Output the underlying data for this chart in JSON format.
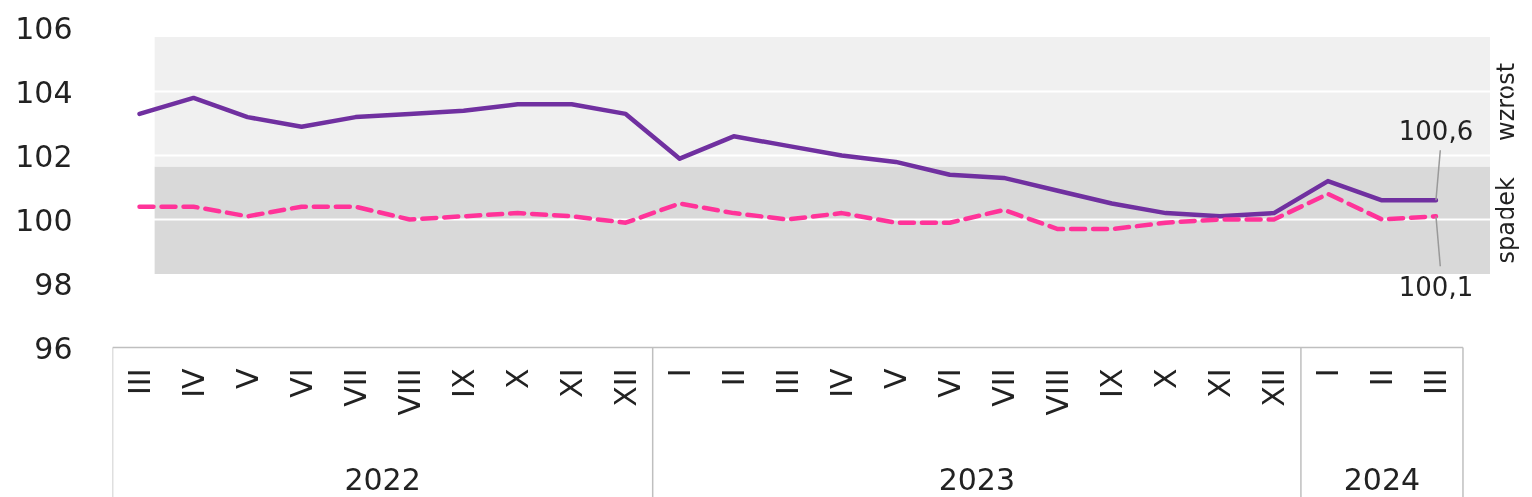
{
  "chart_data": {
    "type": "line",
    "categories": [
      "III",
      "IV",
      "V",
      "VI",
      "VII",
      "VIII",
      "IX",
      "X",
      "XI",
      "XII",
      "I",
      "II",
      "III",
      "IV",
      "V",
      "VI",
      "VII",
      "VIII",
      "IX",
      "X",
      "XI",
      "XII",
      "I",
      "II",
      "III"
    ],
    "series": [
      {
        "color": "#7030a0",
        "line_style": "solid",
        "values": [
          103.3,
          103.8,
          103.2,
          102.9,
          103.2,
          103.3,
          103.4,
          103.6,
          103.6,
          103.3,
          101.9,
          102.6,
          102.3,
          102.0,
          101.8,
          101.4,
          101.3,
          100.9,
          100.5,
          100.2,
          100.1,
          100.2,
          101.2,
          100.6,
          100.6
        ],
        "value_labels": [
          null,
          null,
          null,
          null,
          null,
          null,
          null,
          null,
          null,
          null,
          null,
          null,
          null,
          null,
          null,
          null,
          null,
          null,
          null,
          null,
          null,
          null,
          null,
          null,
          "100,6"
        ]
      },
      {
        "color": "#ff3399",
        "line_style": "dashed",
        "values": [
          100.4,
          100.4,
          100.1,
          100.4,
          100.4,
          100.0,
          100.1,
          100.2,
          100.1,
          99.9,
          100.5,
          100.2,
          100.0,
          100.2,
          99.9,
          99.9,
          100.3,
          99.7,
          99.7,
          99.9,
          100.0,
          100.0,
          100.8,
          100.0,
          100.1
        ],
        "value_labels": [
          null,
          null,
          null,
          null,
          null,
          null,
          null,
          null,
          null,
          null,
          null,
          null,
          null,
          null,
          null,
          null,
          null,
          null,
          null,
          null,
          null,
          null,
          null,
          null,
          "100,1"
        ]
      }
    ],
    "ylim": [
      96,
      106
    ],
    "yticks": [
      96,
      98,
      100,
      102,
      104,
      106
    ],
    "grid": "y",
    "bands": [
      {
        "axis": "y",
        "from": 101.65,
        "to": 105.7,
        "label": "wzrost",
        "color": "#f0f0f0"
      },
      {
        "axis": "y",
        "from": 98.3,
        "to": 101.65,
        "label": "spadek",
        "color": "#d9d9d9"
      }
    ],
    "annotations": [
      "2022",
      "2023",
      "2024"
    ]
  }
}
